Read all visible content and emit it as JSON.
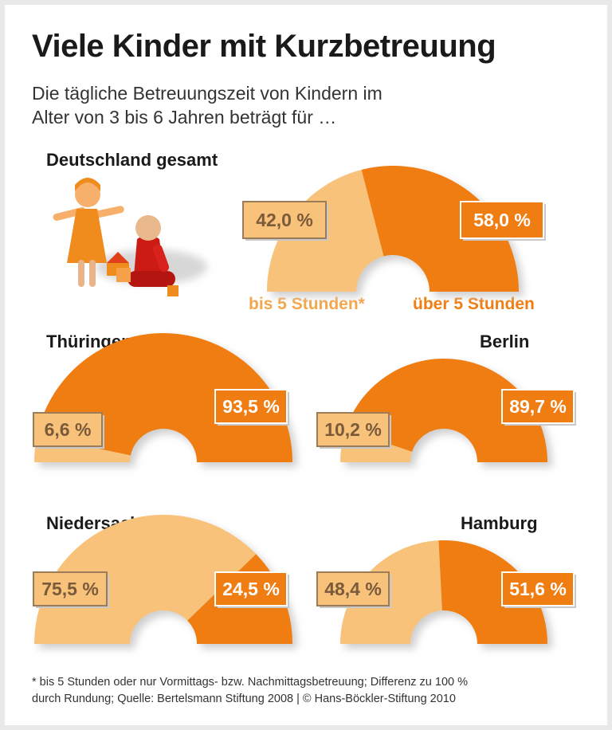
{
  "title": "Viele Kinder mit Kurzbetreuung",
  "subtitle_lines": [
    "Die tägliche Betreuungszeit von Kindern im",
    "Alter von 3 bis 6 Jahren beträgt für …"
  ],
  "legend": {
    "short": "bis 5 Stunden*",
    "long": "über 5 Stunden"
  },
  "colors": {
    "short": "#f8c27a",
    "long": "#ef7d12",
    "short_text": "#7a5a3a"
  },
  "footnote_lines": [
    "* bis 5 Stunden oder nur Vormittags- bzw. Nachmittagsbetreuung; Differenz zu 100 %",
    "durch Rundung; Quelle: Bertelsmann Stiftung 2008 | © Hans-Böckler-Stiftung 2010"
  ],
  "chart_data": [
    {
      "type": "pie",
      "title": "Deutschland gesamt",
      "categories": [
        "bis 5 Stunden",
        "über 5 Stunden"
      ],
      "values": [
        42.0,
        58.0
      ],
      "labels": [
        "42,0 %",
        "58,0 %"
      ]
    },
    {
      "type": "pie",
      "title": "Thüringen",
      "categories": [
        "bis 5 Stunden",
        "über 5 Stunden"
      ],
      "values": [
        6.6,
        93.5
      ],
      "labels": [
        "6,6 %",
        "93,5 %"
      ]
    },
    {
      "type": "pie",
      "title": "Berlin",
      "categories": [
        "bis 5 Stunden",
        "über 5 Stunden"
      ],
      "values": [
        10.2,
        89.7
      ],
      "labels": [
        "10,2 %",
        "89,7 %"
      ]
    },
    {
      "type": "pie",
      "title": "Niedersachsen",
      "categories": [
        "bis 5 Stunden",
        "über 5 Stunden"
      ],
      "values": [
        75.5,
        24.5
      ],
      "labels": [
        "75,5 %",
        "24,5 %"
      ]
    },
    {
      "type": "pie",
      "title": "Hamburg",
      "categories": [
        "bis 5 Stunden",
        "über 5 Stunden"
      ],
      "values": [
        48.4,
        51.6
      ],
      "labels": [
        "48,4 %",
        "51,6 %"
      ]
    }
  ]
}
